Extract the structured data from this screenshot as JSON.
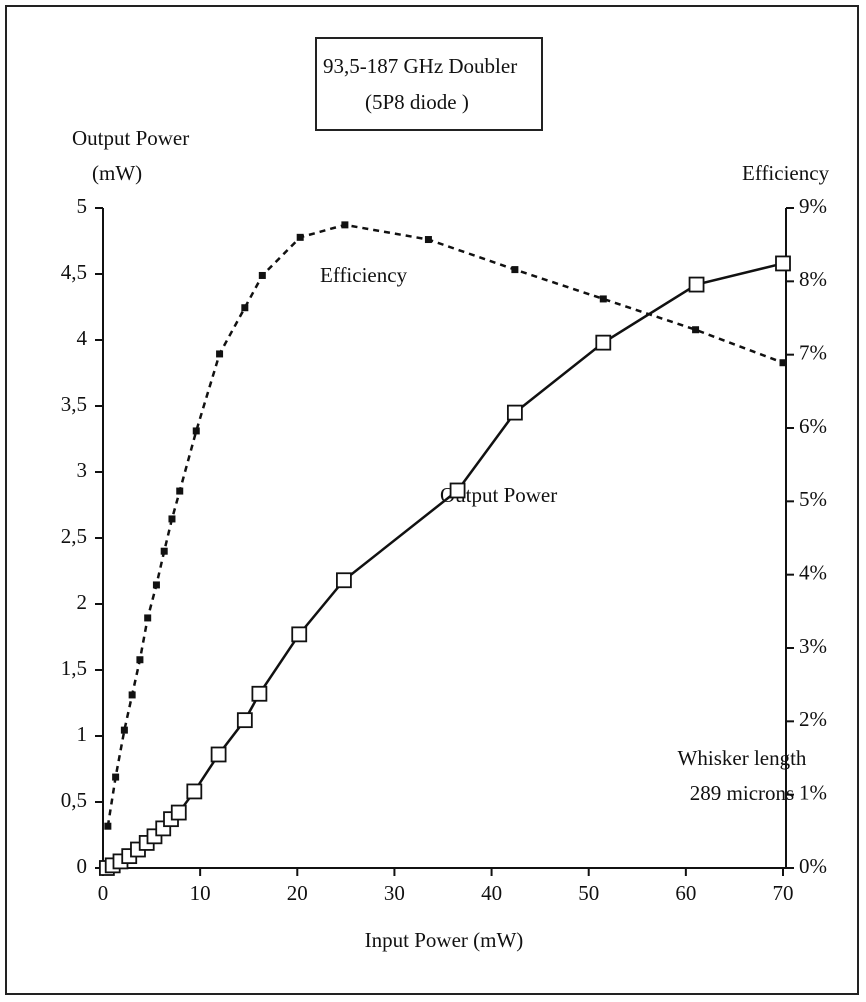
{
  "chart_data": {
    "type": "line",
    "title": "93,5-187 GHz Doubler",
    "subtitle": "(5P8  diode )",
    "x_label": "Input Power (mW)",
    "y_label": [
      "Output Power",
      "(mW)"
    ],
    "y2_label": "Efficiency",
    "annotations": [
      "Whisker length",
      "289 microns"
    ],
    "xlim": [
      0,
      70
    ],
    "xticks": [
      0,
      10,
      20,
      30,
      40,
      50,
      60,
      70
    ],
    "ylim": [
      0,
      5
    ],
    "yticks": [
      0,
      {
        "value": 0.5,
        "label": "0,5"
      },
      1,
      {
        "value": 1.5,
        "label": "1,5"
      },
      2,
      {
        "value": 2.5,
        "label": "2,5"
      },
      3,
      {
        "value": 3.5,
        "label": "3,5"
      },
      4,
      {
        "value": 4.5,
        "label": "4,5"
      },
      5
    ],
    "y2lim": [
      0,
      9
    ],
    "y2ticks": [
      {
        "value": 0,
        "label": "0%"
      },
      {
        "value": 1,
        "label": "1%"
      },
      {
        "value": 2,
        "label": "2%"
      },
      {
        "value": 3,
        "label": "3%"
      },
      {
        "value": 4,
        "label": "4%"
      },
      {
        "value": 5,
        "label": "5%"
      },
      {
        "value": 6,
        "label": "6%"
      },
      {
        "value": 7,
        "label": "7%"
      },
      {
        "value": 8,
        "label": "8%"
      },
      {
        "value": 9,
        "label": "9%"
      }
    ],
    "series": [
      {
        "name": "Output Power",
        "color": "#111111",
        "marker": "open-square",
        "dash": "solid",
        "x": [
          0.4,
          1.0,
          1.8,
          2.7,
          3.6,
          4.5,
          5.3,
          6.2,
          7.0,
          7.8,
          9.4,
          11.9,
          14.6,
          16.1,
          20.2,
          24.8,
          36.5,
          42.4,
          51.5,
          61.1,
          70.0
        ],
        "values": [
          0,
          0.02,
          0.05,
          0.09,
          0.14,
          0.19,
          0.24,
          0.3,
          0.37,
          0.42,
          0.58,
          0.86,
          1.12,
          1.32,
          1.77,
          2.18,
          2.86,
          3.45,
          3.98,
          4.42,
          4.58
        ]
      },
      {
        "name": "Efficiency",
        "color": "#111111",
        "marker": "filled-square",
        "dash": "dashed",
        "axis": "y2",
        "x": [
          0.5,
          1.3,
          2.2,
          3.0,
          3.8,
          4.6,
          5.5,
          6.3,
          7.1,
          7.9,
          9.6,
          12.0,
          14.6,
          16.4,
          20.3,
          24.9,
          33.5,
          42.4,
          51.5,
          61.0,
          70.0
        ],
        "values": [
          0.57,
          1.24,
          1.88,
          2.36,
          2.84,
          3.41,
          3.86,
          4.32,
          4.76,
          5.14,
          5.96,
          7.01,
          7.64,
          8.08,
          8.6,
          8.77,
          8.57,
          8.16,
          7.76,
          7.34,
          6.89
        ]
      }
    ]
  }
}
